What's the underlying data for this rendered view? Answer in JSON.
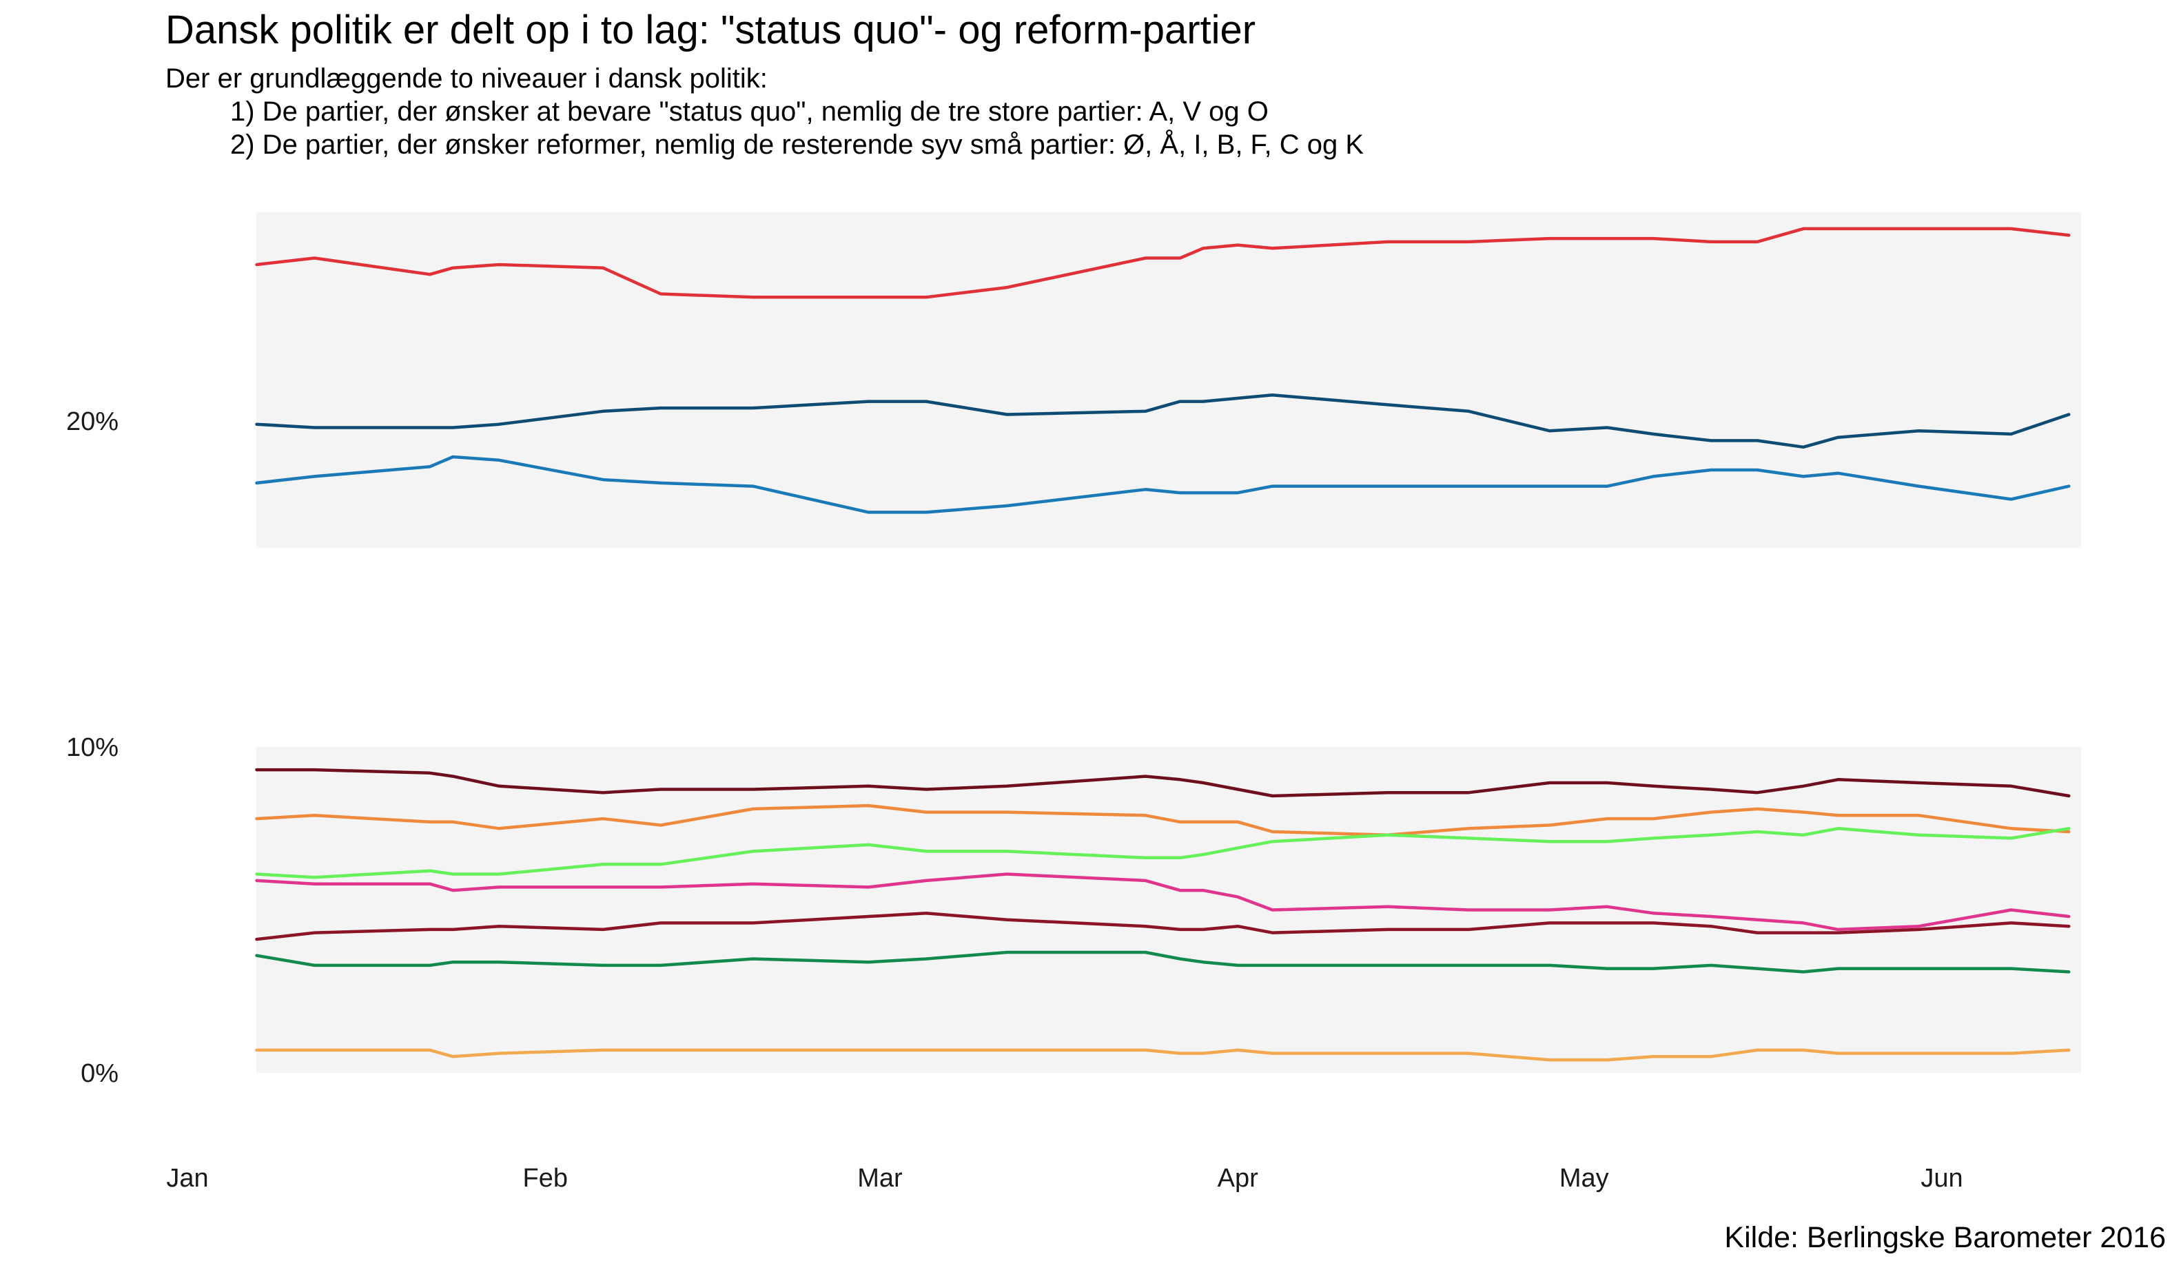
{
  "title": "Dansk politik er delt op i to lag: \"status quo\"- og reform-partier",
  "subtitle": {
    "line1": "Der er grundlæggende to niveauer i dansk politik:",
    "line2": "1) De partier, der ønsker at bevare \"status quo\", nemlig de tre store partier: A, V og O",
    "line3": "2) De partier, der ønsker reformer, nemlig de resterende syv små partier: Ø, Å, I, B, F, C og K"
  },
  "caption": "Kilde: Berlingske Barometer 2016",
  "chart_data": {
    "type": "line",
    "x_unit": "day of year 2016",
    "x": [
      7,
      12,
      22,
      24,
      28,
      37,
      42,
      50,
      60,
      65,
      72,
      84,
      87,
      89,
      92,
      95,
      105,
      112,
      119,
      124,
      128,
      133,
      137,
      141,
      144,
      151,
      159,
      164
    ],
    "ylim": [
      0,
      28
    ],
    "y_ticks": [
      0,
      10,
      20
    ],
    "y_tick_labels": [
      "0%",
      "10%",
      "20%"
    ],
    "x_ticks": [
      "Jan",
      "Feb",
      "Mar",
      "Apr",
      "May",
      "Jun"
    ],
    "grid": false,
    "legend": "none",
    "panels": [
      {
        "name": "status quo",
        "ylim": [
          16.1,
          26.4
        ]
      },
      {
        "name": "reform",
        "ylim": [
          0,
          10
        ]
      }
    ],
    "series": [
      {
        "color": "#e03038",
        "panel": 0,
        "values": [
          24.8,
          25.0,
          24.5,
          24.7,
          24.8,
          24.7,
          23.9,
          23.8,
          23.8,
          23.8,
          24.1,
          25.0,
          25.0,
          25.3,
          25.4,
          25.3,
          25.5,
          25.5,
          25.6,
          25.6,
          25.6,
          25.5,
          25.5,
          25.9,
          25.9,
          25.9,
          25.9,
          25.7
        ]
      },
      {
        "color": "#0f4c73",
        "panel": 0,
        "values": [
          19.9,
          19.8,
          19.8,
          19.8,
          19.9,
          20.3,
          20.4,
          20.4,
          20.6,
          20.6,
          20.2,
          20.3,
          20.6,
          20.6,
          20.7,
          20.8,
          20.5,
          20.3,
          19.7,
          19.8,
          19.6,
          19.4,
          19.4,
          19.2,
          19.5,
          19.7,
          19.6,
          20.2
        ]
      },
      {
        "color": "#1a7ab8",
        "panel": 0,
        "values": [
          18.1,
          18.3,
          18.6,
          18.9,
          18.8,
          18.2,
          18.1,
          18.0,
          17.2,
          17.2,
          17.4,
          17.9,
          17.8,
          17.8,
          17.8,
          18.0,
          18.0,
          18.0,
          18.0,
          18.0,
          18.3,
          18.5,
          18.5,
          18.3,
          18.4,
          18.0,
          17.6,
          18.0
        ]
      },
      {
        "color": "#6e0f1e",
        "panel": 1,
        "values": [
          9.3,
          9.3,
          9.2,
          9.1,
          8.8,
          8.6,
          8.7,
          8.7,
          8.8,
          8.7,
          8.8,
          9.1,
          9.0,
          8.9,
          8.7,
          8.5,
          8.6,
          8.6,
          8.9,
          8.9,
          8.8,
          8.7,
          8.6,
          8.8,
          9.0,
          8.9,
          8.8,
          8.5
        ]
      },
      {
        "color": "#ef8a3d",
        "panel": 1,
        "values": [
          7.8,
          7.9,
          7.7,
          7.7,
          7.5,
          7.8,
          7.6,
          8.1,
          8.2,
          8.0,
          8.0,
          7.9,
          7.7,
          7.7,
          7.7,
          7.4,
          7.3,
          7.5,
          7.6,
          7.8,
          7.8,
          8.0,
          8.1,
          8.0,
          7.9,
          7.9,
          7.5,
          7.4
        ]
      },
      {
        "color": "#66f05a",
        "panel": 1,
        "values": [
          6.1,
          6.0,
          6.2,
          6.1,
          6.1,
          6.4,
          6.4,
          6.8,
          7.0,
          6.8,
          6.8,
          6.6,
          6.6,
          6.7,
          6.9,
          7.1,
          7.3,
          7.2,
          7.1,
          7.1,
          7.2,
          7.3,
          7.4,
          7.3,
          7.5,
          7.3,
          7.2,
          7.5
        ]
      },
      {
        "color": "#e0358c",
        "panel": 1,
        "values": [
          5.9,
          5.8,
          5.8,
          5.6,
          5.7,
          5.7,
          5.7,
          5.8,
          5.7,
          5.9,
          6.1,
          5.9,
          5.6,
          5.6,
          5.4,
          5.0,
          5.1,
          5.0,
          5.0,
          5.1,
          4.9,
          4.8,
          4.7,
          4.6,
          4.4,
          4.5,
          5.0,
          4.8
        ]
      },
      {
        "color": "#8b1426",
        "panel": 1,
        "values": [
          4.1,
          4.3,
          4.4,
          4.4,
          4.5,
          4.4,
          4.6,
          4.6,
          4.8,
          4.9,
          4.7,
          4.5,
          4.4,
          4.4,
          4.5,
          4.3,
          4.4,
          4.4,
          4.6,
          4.6,
          4.6,
          4.5,
          4.3,
          4.3,
          4.3,
          4.4,
          4.6,
          4.5
        ]
      },
      {
        "color": "#138a4d",
        "panel": 1,
        "values": [
          3.6,
          3.3,
          3.3,
          3.4,
          3.4,
          3.3,
          3.3,
          3.5,
          3.4,
          3.5,
          3.7,
          3.7,
          3.5,
          3.4,
          3.3,
          3.3,
          3.3,
          3.3,
          3.3,
          3.2,
          3.2,
          3.3,
          3.2,
          3.1,
          3.2,
          3.2,
          3.2,
          3.1
        ]
      },
      {
        "color": "#f2a84e",
        "panel": 1,
        "values": [
          0.7,
          0.7,
          0.7,
          0.5,
          0.6,
          0.7,
          0.7,
          0.7,
          0.7,
          0.7,
          0.7,
          0.7,
          0.6,
          0.6,
          0.7,
          0.6,
          0.6,
          0.6,
          0.4,
          0.4,
          0.5,
          0.5,
          0.7,
          0.7,
          0.6,
          0.6,
          0.6,
          0.7
        ]
      }
    ]
  }
}
